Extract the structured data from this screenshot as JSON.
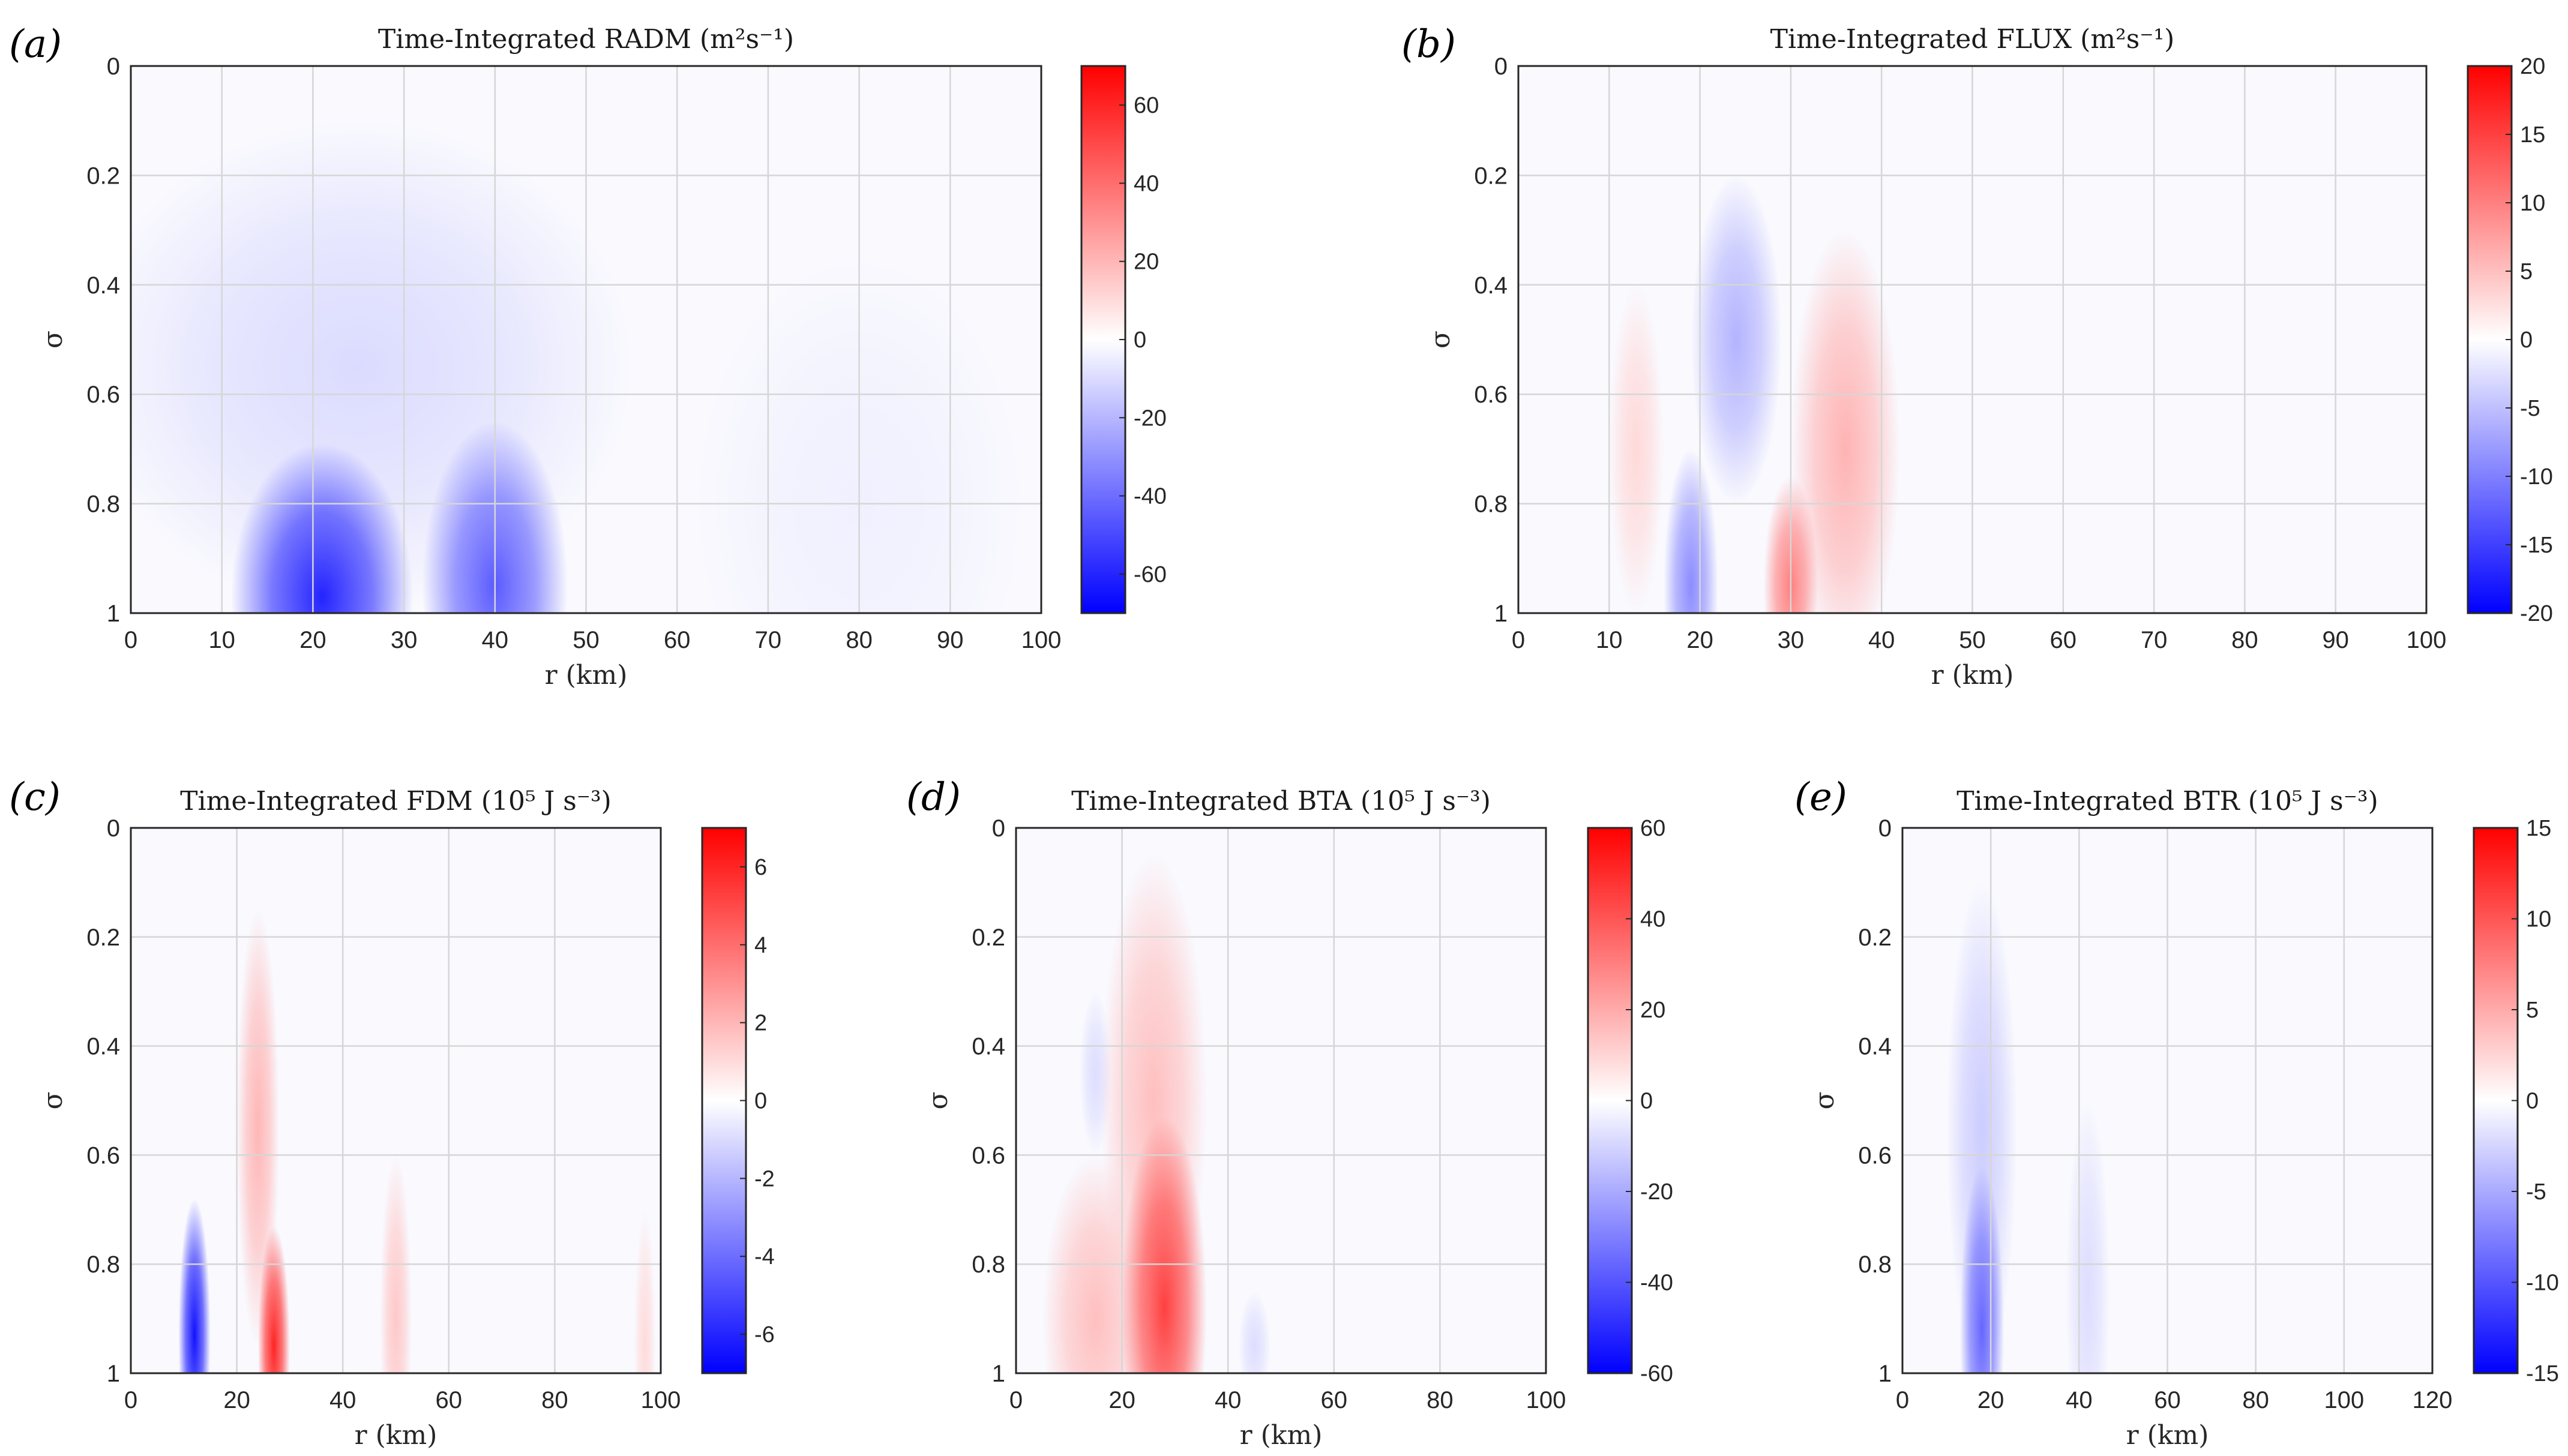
{
  "figure": {
    "type": "contour-panels",
    "panel_count": 5
  },
  "chart_data": [
    {
      "type": "heatmap",
      "panel_label": "(a)",
      "title": "Time-Integrated RADM (m²s⁻¹)",
      "xlabel": "r (km)",
      "ylabel": "σ",
      "xlim": [
        0,
        100
      ],
      "ylim": [
        0,
        1
      ],
      "y_reversed": true,
      "xticks": [
        "0",
        "10",
        "20",
        "30",
        "40",
        "50",
        "60",
        "70",
        "80",
        "90",
        "100"
      ],
      "yticks": [
        "0",
        "0.2",
        "0.4",
        "0.6",
        "0.8",
        "1"
      ],
      "colorbar": {
        "range": [
          -70,
          70
        ],
        "ticks": [
          60,
          40,
          20,
          0,
          -20,
          -40,
          -60
        ]
      },
      "features": [
        {
          "r": 21,
          "sigma": 0.97,
          "value": -60,
          "r_radius": 10,
          "sigma_radius": 0.28
        },
        {
          "r": 40,
          "sigma": 0.95,
          "value": -45,
          "r_radius": 8,
          "sigma_radius": 0.3
        },
        {
          "r": 25,
          "sigma": 0.55,
          "value": -10,
          "r_radius": 30,
          "sigma_radius": 0.45
        },
        {
          "r": 80,
          "sigma": 0.8,
          "value": -4,
          "r_radius": 18,
          "sigma_radius": 0.45
        }
      ]
    },
    {
      "type": "heatmap",
      "panel_label": "(b)",
      "title": "Time-Integrated FLUX (m²s⁻¹)",
      "xlabel": "r (km)",
      "ylabel": "σ",
      "xlim": [
        0,
        100
      ],
      "ylim": [
        0,
        1
      ],
      "y_reversed": true,
      "xticks": [
        "0",
        "10",
        "20",
        "30",
        "40",
        "50",
        "60",
        "70",
        "80",
        "90",
        "100"
      ],
      "yticks": [
        "0",
        "0.2",
        "0.4",
        "0.6",
        "0.8",
        "1"
      ],
      "colorbar": {
        "range": [
          -20,
          20
        ],
        "ticks": [
          20,
          15,
          10,
          5,
          0,
          -5,
          -10,
          -15,
          -20
        ]
      },
      "features": [
        {
          "r": 19,
          "sigma": 0.95,
          "value": -9,
          "r_radius": 3,
          "sigma_radius": 0.25
        },
        {
          "r": 24,
          "sigma": 0.5,
          "value": -6,
          "r_radius": 5,
          "sigma_radius": 0.3
        },
        {
          "r": 30,
          "sigma": 0.95,
          "value": 10,
          "r_radius": 3,
          "sigma_radius": 0.2
        },
        {
          "r": 36,
          "sigma": 0.7,
          "value": 6,
          "r_radius": 6,
          "sigma_radius": 0.4
        },
        {
          "r": 13,
          "sigma": 0.7,
          "value": 3,
          "r_radius": 3,
          "sigma_radius": 0.3
        }
      ]
    },
    {
      "type": "heatmap",
      "panel_label": "(c)",
      "title": "Time-Integrated FDM (10⁵ J s⁻³)",
      "xlabel": "r (km)",
      "ylabel": "σ",
      "xlim": [
        0,
        100
      ],
      "ylim": [
        0,
        1
      ],
      "y_reversed": true,
      "xticks": [
        "0",
        "20",
        "40",
        "60",
        "80",
        "100"
      ],
      "yticks": [
        "0",
        "0.2",
        "0.4",
        "0.6",
        "0.8",
        "1"
      ],
      "colorbar": {
        "range": [
          -7,
          7
        ],
        "ticks": [
          6,
          4,
          2,
          0,
          -2,
          -4,
          -6
        ]
      },
      "features": [
        {
          "r": 12,
          "sigma": 0.93,
          "value": -6.5,
          "r_radius": 3,
          "sigma_radius": 0.25
        },
        {
          "r": 27,
          "sigma": 0.95,
          "value": 6,
          "r_radius": 3,
          "sigma_radius": 0.22
        },
        {
          "r": 24,
          "sigma": 0.55,
          "value": 2,
          "r_radius": 4,
          "sigma_radius": 0.4
        },
        {
          "r": 50,
          "sigma": 0.9,
          "value": 1.5,
          "r_radius": 3,
          "sigma_radius": 0.3
        },
        {
          "r": 97,
          "sigma": 0.95,
          "value": 1,
          "r_radius": 2,
          "sigma_radius": 0.25
        }
      ]
    },
    {
      "type": "heatmap",
      "panel_label": "(d)",
      "title": "Time-Integrated BTA (10⁵ J s⁻³)",
      "xlabel": "r (km)",
      "ylabel": "σ",
      "xlim": [
        0,
        100
      ],
      "ylim": [
        0,
        1
      ],
      "y_reversed": true,
      "xticks": [
        "0",
        "20",
        "40",
        "60",
        "80",
        "100"
      ],
      "yticks": [
        "0",
        "0.2",
        "0.4",
        "0.6",
        "0.8",
        "1"
      ],
      "colorbar": {
        "range": [
          -60,
          60
        ],
        "ticks": [
          60,
          40,
          20,
          0,
          -20,
          -40,
          -60
        ]
      },
      "features": [
        {
          "r": 28,
          "sigma": 0.88,
          "value": 45,
          "r_radius": 8,
          "sigma_radius": 0.35
        },
        {
          "r": 26,
          "sigma": 0.5,
          "value": 15,
          "r_radius": 10,
          "sigma_radius": 0.45
        },
        {
          "r": 15,
          "sigma": 0.9,
          "value": 15,
          "r_radius": 10,
          "sigma_radius": 0.3
        },
        {
          "r": 15,
          "sigma": 0.45,
          "value": -8,
          "r_radius": 3,
          "sigma_radius": 0.15
        },
        {
          "r": 45,
          "sigma": 0.95,
          "value": -8,
          "r_radius": 3,
          "sigma_radius": 0.1
        }
      ]
    },
    {
      "type": "heatmap",
      "panel_label": "(e)",
      "title": "Time-Integrated BTR (10⁵ J s⁻³)",
      "xlabel": "r (km)",
      "ylabel": "σ",
      "xlim": [
        0,
        120
      ],
      "ylim": [
        0,
        1
      ],
      "y_reversed": true,
      "xticks": [
        "0",
        "20",
        "40",
        "60",
        "80",
        "100",
        "120"
      ],
      "yticks": [
        "0",
        "0.2",
        "0.4",
        "0.6",
        "0.8",
        "1"
      ],
      "colorbar": {
        "range": [
          -15,
          15
        ],
        "ticks": [
          15,
          10,
          5,
          0,
          -5,
          -10,
          -15
        ]
      },
      "features": [
        {
          "r": 18,
          "sigma": 0.92,
          "value": -9,
          "r_radius": 5,
          "sigma_radius": 0.3
        },
        {
          "r": 18,
          "sigma": 0.55,
          "value": -3,
          "r_radius": 8,
          "sigma_radius": 0.45
        },
        {
          "r": 42,
          "sigma": 0.85,
          "value": -2,
          "r_radius": 5,
          "sigma_radius": 0.35
        }
      ]
    }
  ]
}
